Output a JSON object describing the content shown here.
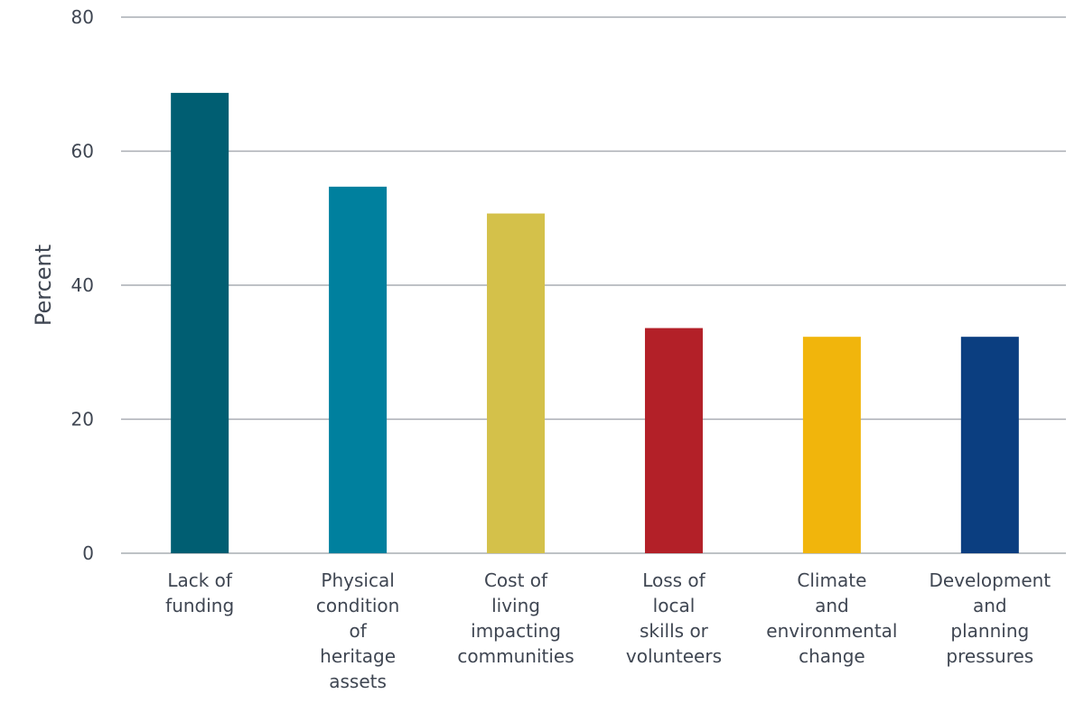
{
  "chart_data": {
    "type": "bar",
    "categories": [
      [
        "Lack of",
        "funding"
      ],
      [
        "Physical",
        "condition",
        "of",
        "heritage",
        "assets"
      ],
      [
        "Cost of",
        "living",
        "impacting",
        "communities"
      ],
      [
        "Loss of",
        "local",
        "skills or",
        "volunteers"
      ],
      [
        "Climate",
        "and",
        "environmental",
        "change"
      ],
      [
        "Development",
        "and",
        "planning",
        "pressures"
      ]
    ],
    "values": [
      68.7,
      54.7,
      50.7,
      33.6,
      32.3,
      32.3
    ],
    "colors": [
      "#005e72",
      "#00809e",
      "#d4c14a",
      "#b32028",
      "#f1b50c",
      "#0b3e80"
    ],
    "xlabel": "",
    "ylabel": "Percent",
    "ylim": [
      0,
      80
    ],
    "yticks": [
      0,
      20,
      40,
      60,
      80
    ],
    "grid": true
  }
}
